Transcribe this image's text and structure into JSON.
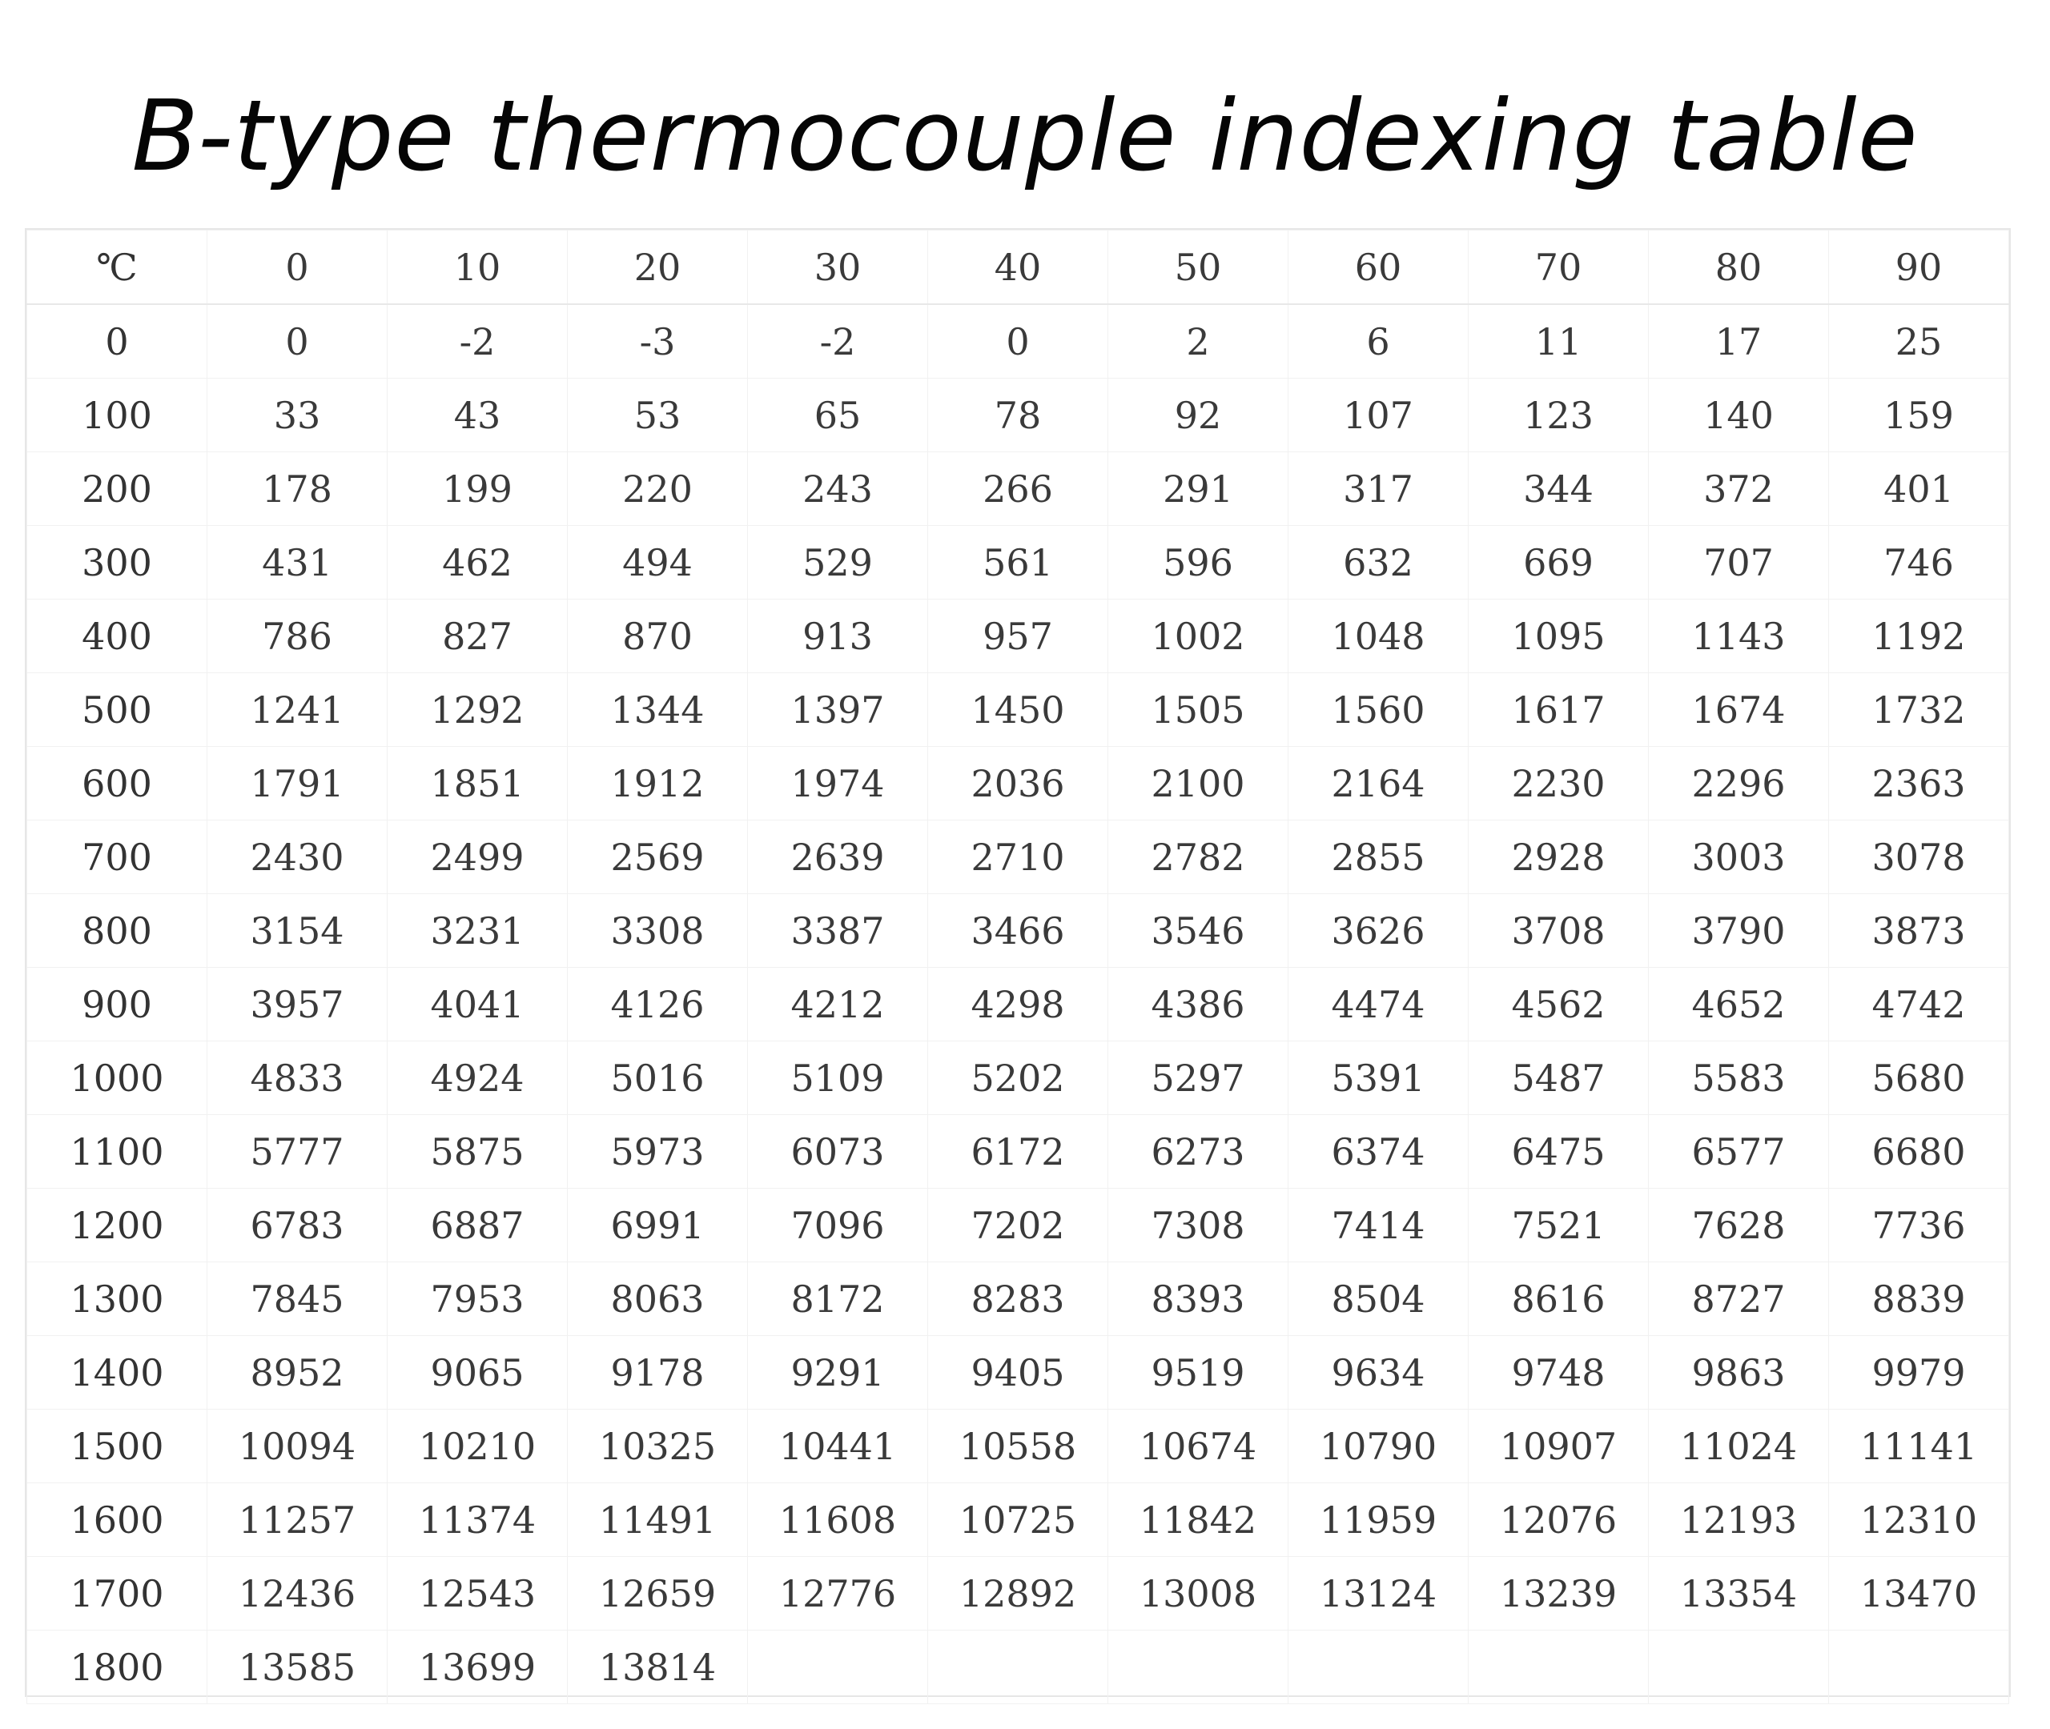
{
  "title": "B-type thermocouple indexing table",
  "table": {
    "columns": [
      "℃",
      "0",
      "10",
      "20",
      "30",
      "40",
      "50",
      "60",
      "70",
      "80",
      "90"
    ],
    "rows": [
      [
        "0",
        "0",
        "-2",
        "-3",
        "-2",
        "0",
        "2",
        "6",
        "11",
        "17",
        "25"
      ],
      [
        "100",
        "33",
        "43",
        "53",
        "65",
        "78",
        "92",
        "107",
        "123",
        "140",
        "159"
      ],
      [
        "200",
        "178",
        "199",
        "220",
        "243",
        "266",
        "291",
        "317",
        "344",
        "372",
        "401"
      ],
      [
        "300",
        "431",
        "462",
        "494",
        "529",
        "561",
        "596",
        "632",
        "669",
        "707",
        "746"
      ],
      [
        "400",
        "786",
        "827",
        "870",
        "913",
        "957",
        "1002",
        "1048",
        "1095",
        "1143",
        "1192"
      ],
      [
        "500",
        "1241",
        "1292",
        "1344",
        "1397",
        "1450",
        "1505",
        "1560",
        "1617",
        "1674",
        "1732"
      ],
      [
        "600",
        "1791",
        "1851",
        "1912",
        "1974",
        "2036",
        "2100",
        "2164",
        "2230",
        "2296",
        "2363"
      ],
      [
        "700",
        "2430",
        "2499",
        "2569",
        "2639",
        "2710",
        "2782",
        "2855",
        "2928",
        "3003",
        "3078"
      ],
      [
        "800",
        "3154",
        "3231",
        "3308",
        "3387",
        "3466",
        "3546",
        "3626",
        "3708",
        "3790",
        "3873"
      ],
      [
        "900",
        "3957",
        "4041",
        "4126",
        "4212",
        "4298",
        "4386",
        "4474",
        "4562",
        "4652",
        "4742"
      ],
      [
        "1000",
        "4833",
        "4924",
        "5016",
        "5109",
        "5202",
        "5297",
        "5391",
        "5487",
        "5583",
        "5680"
      ],
      [
        "1100",
        "5777",
        "5875",
        "5973",
        "6073",
        "6172",
        "6273",
        "6374",
        "6475",
        "6577",
        "6680"
      ],
      [
        "1200",
        "6783",
        "6887",
        "6991",
        "7096",
        "7202",
        "7308",
        "7414",
        "7521",
        "7628",
        "7736"
      ],
      [
        "1300",
        "7845",
        "7953",
        "8063",
        "8172",
        "8283",
        "8393",
        "8504",
        "8616",
        "8727",
        "8839"
      ],
      [
        "1400",
        "8952",
        "9065",
        "9178",
        "9291",
        "9405",
        "9519",
        "9634",
        "9748",
        "9863",
        "9979"
      ],
      [
        "1500",
        "10094",
        "10210",
        "10325",
        "10441",
        "10558",
        "10674",
        "10790",
        "10907",
        "11024",
        "11141"
      ],
      [
        "1600",
        "11257",
        "11374",
        "11491",
        "11608",
        "10725",
        "11842",
        "11959",
        "12076",
        "12193",
        "12310"
      ],
      [
        "1700",
        "12436",
        "12543",
        "12659",
        "12776",
        "12892",
        "13008",
        "13124",
        "13239",
        "13354",
        "13470"
      ],
      [
        "1800",
        "13585",
        "13699",
        "13814",
        "",
        "",
        "",
        "",
        "",
        "",
        ""
      ]
    ]
  }
}
